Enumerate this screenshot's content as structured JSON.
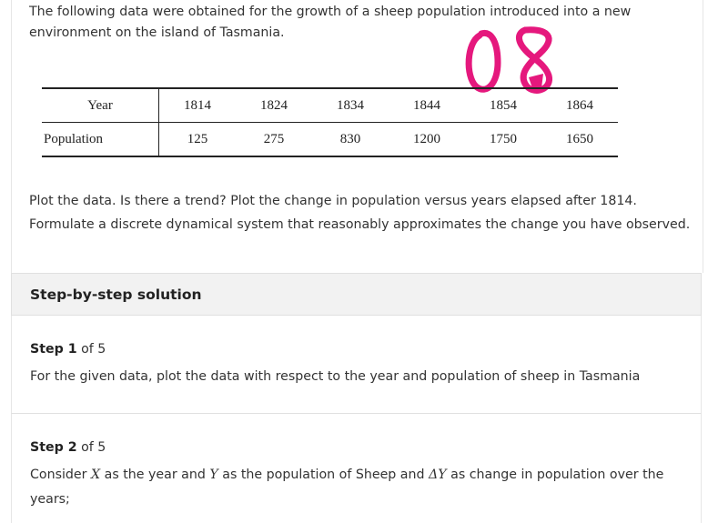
{
  "intro": {
    "text": "The following data were obtained for the growth of a sheep population introduced into a new environment on the island of Tasmania."
  },
  "handwriting": {
    "text": "08",
    "color": "#e5187d"
  },
  "table": {
    "year_label": "Year",
    "population_label": "Population",
    "years": [
      "1814",
      "1824",
      "1834",
      "1844",
      "1854",
      "1864"
    ],
    "populations": [
      "125",
      "275",
      "830",
      "1200",
      "1750",
      "1650"
    ]
  },
  "question": {
    "text": "Plot the data. Is there a trend? Plot the change in population versus years elapsed after 1814. Formulate a discrete dynamical system that reasonably approximates the change you have observed."
  },
  "solution": {
    "title": "Step-by-step solution",
    "step1": {
      "label": "Step 1",
      "of": "of 5",
      "text": "For the given data, plot the data with respect to the year and population of sheep in Tasmania"
    },
    "step2": {
      "label": "Step 2",
      "of": "of 5",
      "t1": "Consider ",
      "X": "X",
      "t2": " as the year and ",
      "Y": "Y",
      "t3": " as the population of Sheep and ",
      "dY": "ΔY",
      "t4": " as change in population over the years;"
    }
  }
}
